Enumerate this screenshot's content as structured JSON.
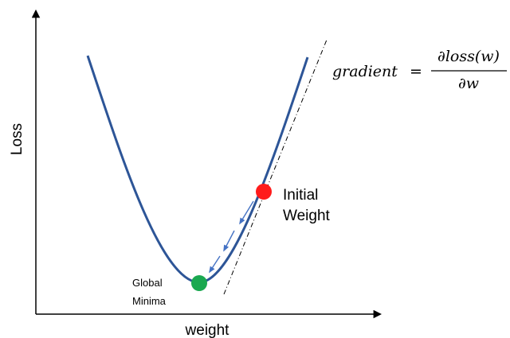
{
  "axes": {
    "x_label": "weight",
    "y_label": "Loss"
  },
  "formula": {
    "lhs": "gradient",
    "equals": "=",
    "numerator": "∂loss(w)",
    "denominator": "∂w"
  },
  "points": {
    "initial": {
      "line1": "Initial",
      "line2": "Weight",
      "color": "#ff1b1b"
    },
    "minimum": {
      "line1": "Global",
      "line2": "Minima",
      "color": "#1aa850"
    }
  },
  "colors": {
    "curve": "#2d5597",
    "steps": "#4472c4",
    "axis": "#000000",
    "tangent": "#000000"
  }
}
